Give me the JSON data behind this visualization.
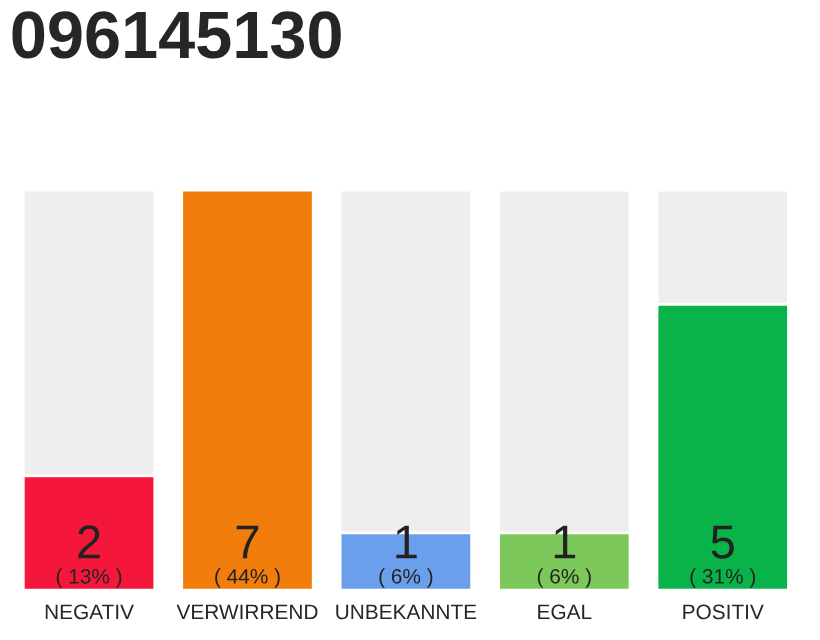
{
  "chart_data": {
    "type": "bar",
    "title": "096145130",
    "categories": [
      "NEGATIV",
      "VERWIRREND",
      "UNBEKANNTE",
      "EGAL",
      "POSITIV"
    ],
    "values": [
      2,
      7,
      1,
      1,
      5
    ],
    "colors": [
      "#f5163b",
      "#f07d0c",
      "#6aa0eb",
      "#7dc85a",
      "#0ab34a"
    ],
    "ylim": [
      0,
      7
    ],
    "tick_labels": "x",
    "data_labels": true,
    "grid": false,
    "annotations": [
      "( 13% )",
      "( 44% )",
      "( 6% )",
      "( 6% )",
      "( 31% )"
    ]
  }
}
